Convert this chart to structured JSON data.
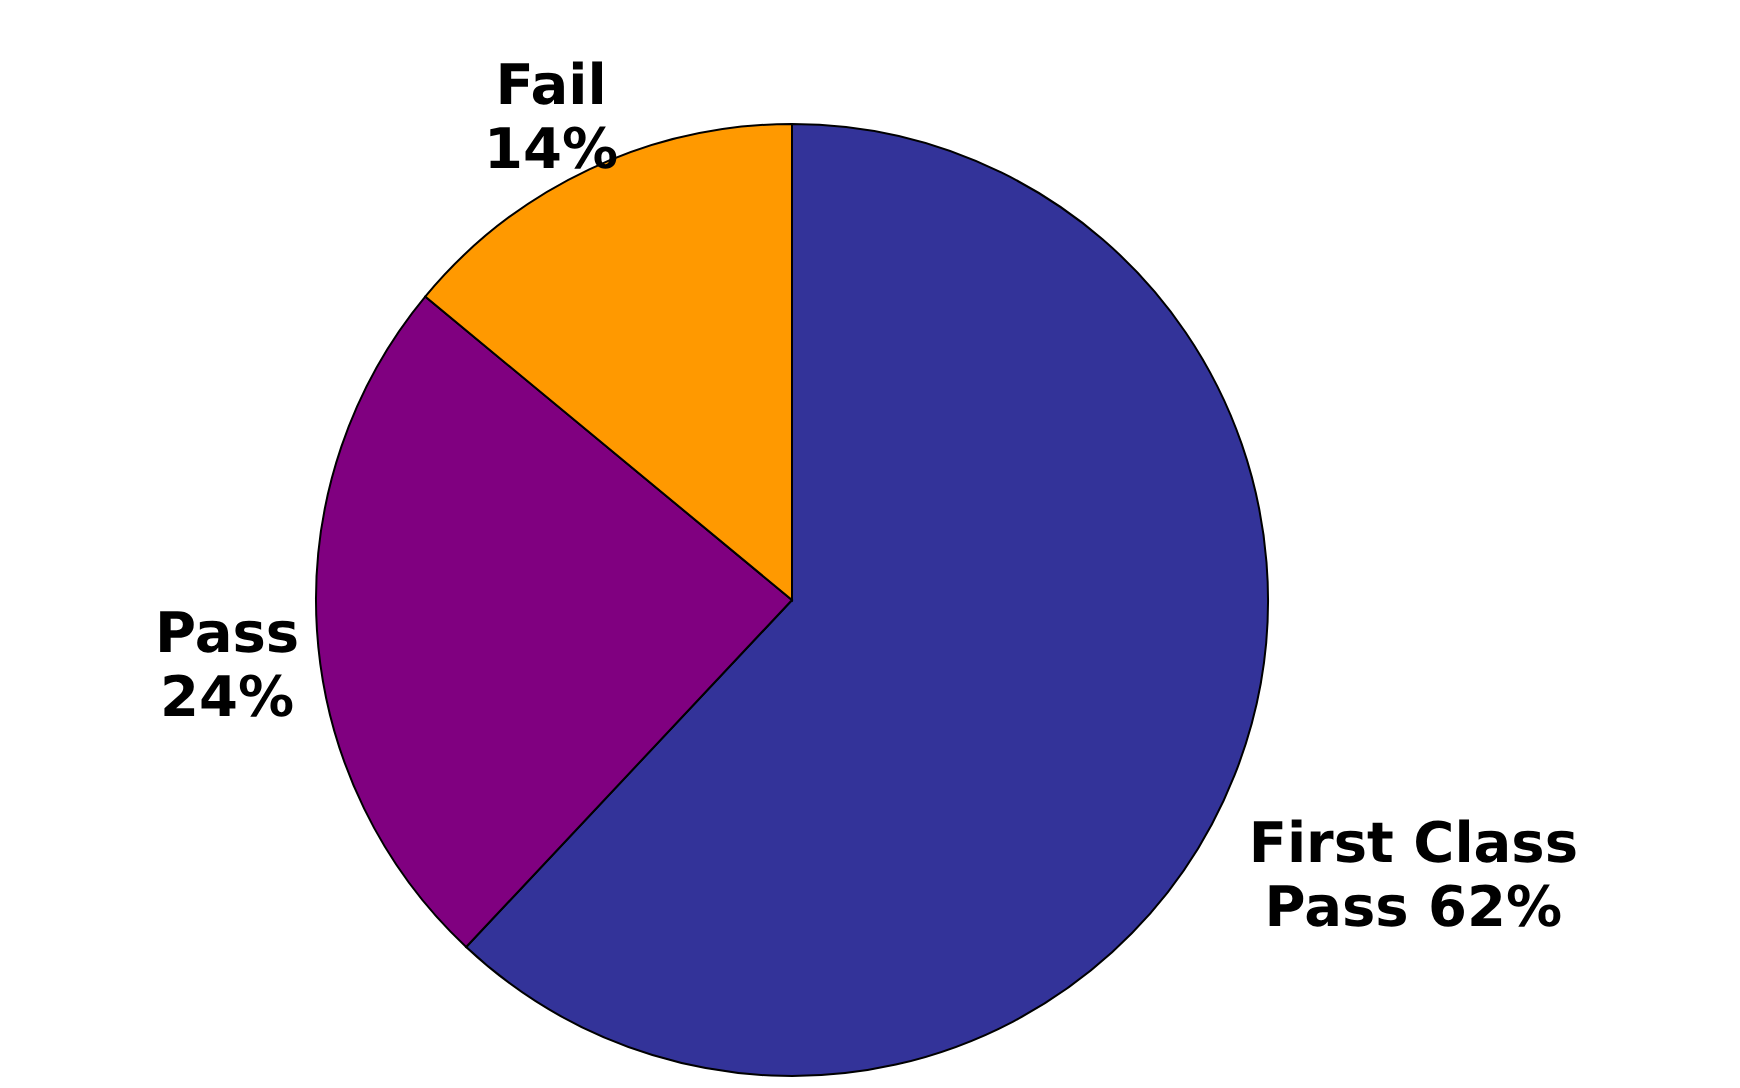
{
  "chart_data": {
    "type": "pie",
    "categories": [
      "First Class Pass",
      "Pass",
      "Fail"
    ],
    "values": [
      62,
      24,
      14
    ],
    "value_labels": [
      "62%",
      "24%",
      "14%"
    ],
    "colors": [
      "#333399",
      "#800080",
      "#ff9900"
    ]
  }
}
